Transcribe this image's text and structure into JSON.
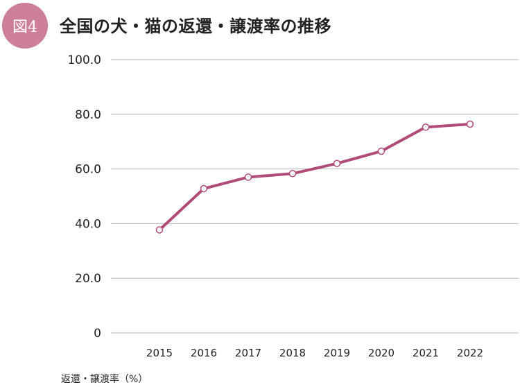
{
  "figure": {
    "badge": "図4",
    "title": "全国の犬・猫の返還・譲渡率の推移",
    "unit_note": "返還・譲渡率（%）"
  },
  "colors": {
    "badge": "#cd7f99",
    "line": "#b04a78",
    "grid": "#b5b5b5",
    "text": "#222222"
  },
  "chart_data": {
    "type": "line",
    "title": "全国の犬・猫の返還・譲渡率の推移",
    "xlabel": "",
    "ylabel": "返還・譲渡率（%）",
    "categories": [
      "2015",
      "2016",
      "2017",
      "2018",
      "2019",
      "2020",
      "2021",
      "2022"
    ],
    "values": [
      37.7,
      52.8,
      57.0,
      58.3,
      62.0,
      66.5,
      75.3,
      76.4
    ],
    "ylim": [
      0,
      100
    ],
    "yticks": [
      0,
      20,
      40,
      60,
      80,
      100
    ],
    "ytick_labels": [
      "0",
      "20.0",
      "40.0",
      "60.0",
      "80.0",
      "100.0"
    ],
    "grid": true,
    "legend": "none",
    "markers": "hollow-circle"
  }
}
